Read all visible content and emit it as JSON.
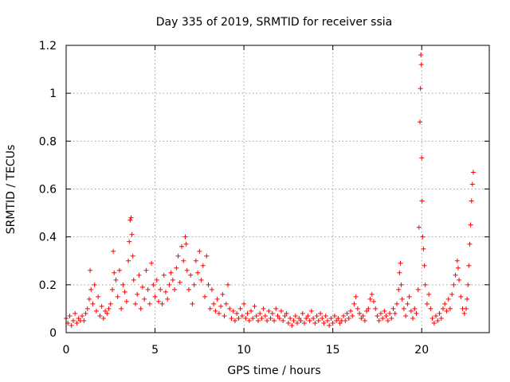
{
  "chart_data": {
    "type": "scatter",
    "title": "Day 335 of 2019, SRMTID for receiver ssia",
    "xlabel": "GPS time / hours",
    "ylabel": "SRMTID / TECUs",
    "xlim": [
      0,
      23.8
    ],
    "ylim": [
      0,
      1.2
    ],
    "x_ticks": [
      0,
      5,
      10,
      15,
      20
    ],
    "x_tick_labels": [
      "0",
      "5",
      "10",
      "15",
      "20"
    ],
    "y_ticks": [
      0,
      0.2,
      0.4,
      0.6,
      0.8,
      1.0,
      1.2
    ],
    "y_tick_labels": [
      "0",
      "0.2",
      "0.4",
      "0.6",
      "0.8",
      "1",
      "1.2"
    ],
    "grid": true,
    "marker": "plus",
    "color": "#ff0000",
    "series": [
      {
        "name": "SRMTID",
        "points": [
          [
            0.0,
            0.06
          ],
          [
            0.1,
            0.04
          ],
          [
            0.2,
            0.07
          ],
          [
            0.3,
            0.03
          ],
          [
            0.4,
            0.05
          ],
          [
            0.5,
            0.08
          ],
          [
            0.6,
            0.04
          ],
          [
            0.7,
            0.06
          ],
          [
            0.8,
            0.05
          ],
          [
            0.9,
            0.07
          ],
          [
            1.0,
            0.05
          ],
          [
            1.1,
            0.08
          ],
          [
            1.2,
            0.1
          ],
          [
            1.3,
            0.14
          ],
          [
            1.35,
            0.26
          ],
          [
            1.4,
            0.18
          ],
          [
            1.5,
            0.12
          ],
          [
            1.6,
            0.2
          ],
          [
            1.7,
            0.09
          ],
          [
            1.8,
            0.15
          ],
          [
            1.9,
            0.07
          ],
          [
            2.0,
            0.11
          ],
          [
            2.1,
            0.06
          ],
          [
            2.2,
            0.09
          ],
          [
            2.3,
            0.08
          ],
          [
            2.4,
            0.1
          ],
          [
            2.5,
            0.12
          ],
          [
            2.6,
            0.18
          ],
          [
            2.65,
            0.34
          ],
          [
            2.7,
            0.25
          ],
          [
            2.8,
            0.22
          ],
          [
            2.9,
            0.15
          ],
          [
            3.0,
            0.26
          ],
          [
            3.1,
            0.1
          ],
          [
            3.2,
            0.2
          ],
          [
            3.3,
            0.17
          ],
          [
            3.4,
            0.13
          ],
          [
            3.5,
            0.3
          ],
          [
            3.55,
            0.38
          ],
          [
            3.6,
            0.47
          ],
          [
            3.65,
            0.48
          ],
          [
            3.7,
            0.41
          ],
          [
            3.75,
            0.32
          ],
          [
            3.8,
            0.22
          ],
          [
            3.9,
            0.12
          ],
          [
            4.0,
            0.16
          ],
          [
            4.1,
            0.24
          ],
          [
            4.2,
            0.1
          ],
          [
            4.3,
            0.19
          ],
          [
            4.4,
            0.14
          ],
          [
            4.5,
            0.26
          ],
          [
            4.6,
            0.18
          ],
          [
            4.7,
            0.12
          ],
          [
            4.8,
            0.29
          ],
          [
            4.9,
            0.2
          ],
          [
            5.0,
            0.15
          ],
          [
            5.1,
            0.22
          ],
          [
            5.2,
            0.13
          ],
          [
            5.3,
            0.18
          ],
          [
            5.4,
            0.12
          ],
          [
            5.5,
            0.24
          ],
          [
            5.6,
            0.17
          ],
          [
            5.7,
            0.14
          ],
          [
            5.8,
            0.2
          ],
          [
            5.9,
            0.25
          ],
          [
            6.0,
            0.22
          ],
          [
            6.1,
            0.18
          ],
          [
            6.2,
            0.27
          ],
          [
            6.3,
            0.32
          ],
          [
            6.4,
            0.21
          ],
          [
            6.5,
            0.36
          ],
          [
            6.6,
            0.3
          ],
          [
            6.7,
            0.4
          ],
          [
            6.75,
            0.37
          ],
          [
            6.8,
            0.26
          ],
          [
            6.9,
            0.18
          ],
          [
            7.0,
            0.24
          ],
          [
            7.1,
            0.12
          ],
          [
            7.2,
            0.2
          ],
          [
            7.3,
            0.3
          ],
          [
            7.4,
            0.25
          ],
          [
            7.5,
            0.34
          ],
          [
            7.6,
            0.22
          ],
          [
            7.7,
            0.28
          ],
          [
            7.8,
            0.15
          ],
          [
            7.9,
            0.32
          ],
          [
            8.0,
            0.2
          ],
          [
            8.1,
            0.1
          ],
          [
            8.2,
            0.18
          ],
          [
            8.3,
            0.12
          ],
          [
            8.4,
            0.09
          ],
          [
            8.5,
            0.14
          ],
          [
            8.6,
            0.08
          ],
          [
            8.7,
            0.11
          ],
          [
            8.8,
            0.16
          ],
          [
            8.9,
            0.07
          ],
          [
            9.0,
            0.12
          ],
          [
            9.1,
            0.2
          ],
          [
            9.2,
            0.1
          ],
          [
            9.3,
            0.06
          ],
          [
            9.4,
            0.09
          ],
          [
            9.5,
            0.05
          ],
          [
            9.6,
            0.08
          ],
          [
            9.7,
            0.06
          ],
          [
            9.8,
            0.1
          ],
          [
            9.9,
            0.07
          ],
          [
            10.0,
            0.12
          ],
          [
            10.1,
            0.06
          ],
          [
            10.2,
            0.08
          ],
          [
            10.3,
            0.05
          ],
          [
            10.4,
            0.09
          ],
          [
            10.5,
            0.06
          ],
          [
            10.6,
            0.11
          ],
          [
            10.7,
            0.07
          ],
          [
            10.8,
            0.05
          ],
          [
            10.9,
            0.08
          ],
          [
            11.0,
            0.06
          ],
          [
            11.1,
            0.1
          ],
          [
            11.2,
            0.07
          ],
          [
            11.3,
            0.05
          ],
          [
            11.4,
            0.09
          ],
          [
            11.5,
            0.06
          ],
          [
            11.6,
            0.08
          ],
          [
            11.7,
            0.05
          ],
          [
            11.8,
            0.1
          ],
          [
            11.9,
            0.07
          ],
          [
            12.0,
            0.06
          ],
          [
            12.1,
            0.09
          ],
          [
            12.2,
            0.05
          ],
          [
            12.3,
            0.07
          ],
          [
            12.4,
            0.08
          ],
          [
            12.5,
            0.04
          ],
          [
            12.6,
            0.06
          ],
          [
            12.7,
            0.03
          ],
          [
            12.8,
            0.05
          ],
          [
            12.9,
            0.07
          ],
          [
            13.0,
            0.04
          ],
          [
            13.1,
            0.06
          ],
          [
            13.2,
            0.05
          ],
          [
            13.3,
            0.08
          ],
          [
            13.4,
            0.04
          ],
          [
            13.5,
            0.06
          ],
          [
            13.6,
            0.07
          ],
          [
            13.7,
            0.05
          ],
          [
            13.8,
            0.09
          ],
          [
            13.9,
            0.06
          ],
          [
            14.0,
            0.04
          ],
          [
            14.1,
            0.07
          ],
          [
            14.2,
            0.05
          ],
          [
            14.3,
            0.08
          ],
          [
            14.4,
            0.06
          ],
          [
            14.5,
            0.04
          ],
          [
            14.6,
            0.07
          ],
          [
            14.7,
            0.05
          ],
          [
            14.8,
            0.03
          ],
          [
            14.9,
            0.06
          ],
          [
            15.0,
            0.04
          ],
          [
            15.1,
            0.07
          ],
          [
            15.2,
            0.05
          ],
          [
            15.3,
            0.06
          ],
          [
            15.4,
            0.04
          ],
          [
            15.5,
            0.05
          ],
          [
            15.6,
            0.07
          ],
          [
            15.7,
            0.05
          ],
          [
            15.8,
            0.08
          ],
          [
            15.9,
            0.06
          ],
          [
            16.0,
            0.09
          ],
          [
            16.1,
            0.07
          ],
          [
            16.2,
            0.12
          ],
          [
            16.3,
            0.15
          ],
          [
            16.4,
            0.1
          ],
          [
            16.5,
            0.08
          ],
          [
            16.6,
            0.06
          ],
          [
            16.7,
            0.07
          ],
          [
            16.8,
            0.05
          ],
          [
            16.9,
            0.09
          ],
          [
            17.0,
            0.1
          ],
          [
            17.1,
            0.14
          ],
          [
            17.2,
            0.16
          ],
          [
            17.3,
            0.13
          ],
          [
            17.4,
            0.1
          ],
          [
            17.5,
            0.07
          ],
          [
            17.6,
            0.05
          ],
          [
            17.7,
            0.08
          ],
          [
            17.8,
            0.06
          ],
          [
            17.9,
            0.09
          ],
          [
            18.0,
            0.07
          ],
          [
            18.1,
            0.05
          ],
          [
            18.2,
            0.08
          ],
          [
            18.3,
            0.06
          ],
          [
            18.4,
            0.1
          ],
          [
            18.5,
            0.08
          ],
          [
            18.6,
            0.12
          ],
          [
            18.7,
            0.18
          ],
          [
            18.75,
            0.25
          ],
          [
            18.8,
            0.29
          ],
          [
            18.85,
            0.2
          ],
          [
            18.9,
            0.14
          ],
          [
            19.0,
            0.1
          ],
          [
            19.1,
            0.07
          ],
          [
            19.2,
            0.12
          ],
          [
            19.3,
            0.15
          ],
          [
            19.4,
            0.09
          ],
          [
            19.5,
            0.06
          ],
          [
            19.6,
            0.1
          ],
          [
            19.7,
            0.08
          ],
          [
            19.8,
            0.18
          ],
          [
            19.85,
            0.44
          ],
          [
            19.9,
            0.88
          ],
          [
            19.93,
            1.02
          ],
          [
            19.95,
            1.16
          ],
          [
            19.98,
            1.12
          ],
          [
            20.0,
            0.73
          ],
          [
            20.02,
            0.55
          ],
          [
            20.05,
            0.4
          ],
          [
            20.1,
            0.35
          ],
          [
            20.15,
            0.28
          ],
          [
            20.2,
            0.2
          ],
          [
            20.3,
            0.12
          ],
          [
            20.4,
            0.16
          ],
          [
            20.5,
            0.1
          ],
          [
            20.6,
            0.06
          ],
          [
            20.7,
            0.04
          ],
          [
            20.8,
            0.07
          ],
          [
            20.9,
            0.05
          ],
          [
            21.0,
            0.08
          ],
          [
            21.1,
            0.06
          ],
          [
            21.2,
            0.1
          ],
          [
            21.3,
            0.12
          ],
          [
            21.4,
            0.09
          ],
          [
            21.5,
            0.14
          ],
          [
            21.6,
            0.1
          ],
          [
            21.7,
            0.16
          ],
          [
            21.8,
            0.2
          ],
          [
            21.9,
            0.24
          ],
          [
            22.0,
            0.3
          ],
          [
            22.05,
            0.27
          ],
          [
            22.1,
            0.22
          ],
          [
            22.2,
            0.15
          ],
          [
            22.3,
            0.1
          ],
          [
            22.4,
            0.08
          ],
          [
            22.5,
            0.1
          ],
          [
            22.55,
            0.14
          ],
          [
            22.6,
            0.2
          ],
          [
            22.65,
            0.28
          ],
          [
            22.7,
            0.37
          ],
          [
            22.75,
            0.45
          ],
          [
            22.8,
            0.55
          ],
          [
            22.85,
            0.62
          ],
          [
            22.9,
            0.67
          ]
        ]
      }
    ]
  }
}
